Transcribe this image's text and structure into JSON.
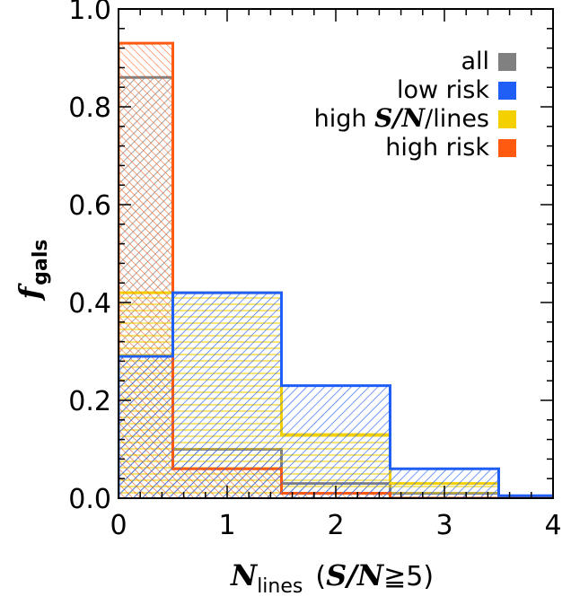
{
  "chart_data": {
    "type": "step-histogram",
    "bin_edges": [
      0,
      0.5,
      1.5,
      2.5,
      3.5,
      4.5
    ],
    "xlim": [
      0,
      4
    ],
    "ylim": [
      0,
      1.0
    ],
    "xticks": [
      "0",
      "1",
      "2",
      "3",
      "4"
    ],
    "yticks": [
      "0.0",
      "0.2",
      "0.4",
      "0.6",
      "0.8",
      "1.0"
    ],
    "xlabel": {
      "main": "N",
      "sub": "lines",
      "paren": "(",
      "sn": "S/N",
      "cond": "≧5)"
    },
    "ylabel": {
      "main": "f",
      "sub": "gals"
    },
    "grid": false,
    "legend_position": "top-right",
    "series": [
      {
        "name": "all",
        "color": "#808080",
        "values": [
          0.86,
          0.1,
          0.03,
          0.01,
          0.0
        ]
      },
      {
        "name": "low risk",
        "color": "#1f5ff5",
        "values": [
          0.29,
          0.42,
          0.23,
          0.06,
          0.005
        ]
      },
      {
        "name": "high S/N/lines",
        "color": "#f5d000",
        "values": [
          0.42,
          0.42,
          0.13,
          0.03,
          0.0
        ]
      },
      {
        "name": "high risk",
        "color": "#ff5a10",
        "values": [
          0.93,
          0.06,
          0.01,
          0.0,
          0.0
        ]
      }
    ],
    "legend": {
      "all": "all",
      "low_risk": "low risk",
      "high_sn_prefix": "high ",
      "high_sn_ital": "S/N",
      "high_sn_suffix": "/lines",
      "high_risk": "high risk"
    }
  }
}
